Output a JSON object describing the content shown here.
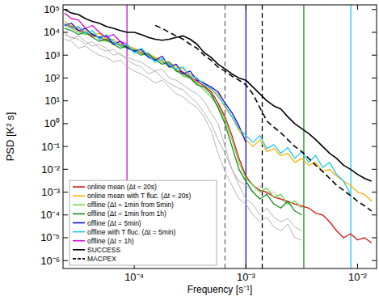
{
  "chart_data": {
    "type": "line",
    "x_label": "Frequency [s⁻¹]",
    "y_label": "PSD [K² s]",
    "log": true,
    "legend": "lower left",
    "xlim": [
      2.3e-05,
      0.0148
    ],
    "ylim": [
      4.5e-07,
      160000.0
    ],
    "xticks": [
      {
        "value": 0.0001,
        "label": "10⁻⁴"
      },
      {
        "value": 0.001,
        "label": "10⁻³"
      },
      {
        "value": 0.01,
        "label": "10⁻²"
      }
    ],
    "yticks": [
      {
        "value": 1e-06,
        "label": "10⁻⁶"
      },
      {
        "value": 1e-05,
        "label": "10⁻⁵"
      },
      {
        "value": 0.0001,
        "label": "10⁻⁴"
      },
      {
        "value": 0.001,
        "label": "10⁻³"
      },
      {
        "value": 0.01,
        "label": "10⁻²"
      },
      {
        "value": 0.1,
        "label": "10⁻¹"
      },
      {
        "value": 1,
        "label": "10⁰"
      },
      {
        "value": 10,
        "label": "10¹"
      },
      {
        "value": 100,
        "label": "10²"
      },
      {
        "value": 1000,
        "label": "10³"
      },
      {
        "value": 10000,
        "label": "10⁴"
      },
      {
        "value": 100000,
        "label": "10⁵"
      }
    ],
    "x": [
      2.371e-05,
      2.738e-05,
      3.162e-05,
      3.652e-05,
      4.217e-05,
      4.87e-05,
      5.623e-05,
      6.494e-05,
      7.499e-05,
      8.66e-05,
      0.0001,
      0.0001155,
      0.0001334,
      0.000154,
      0.0001778,
      0.0002054,
      0.0002371,
      0.0002738,
      0.0003162,
      0.0003652,
      0.0004217,
      0.000487,
      0.0005623,
      0.0006494,
      0.0007499,
      0.000866,
      0.001,
      0.001155,
      0.001334,
      0.00154,
      0.001778,
      0.002054,
      0.002371,
      0.002738,
      0.003162,
      0.003652,
      0.004217,
      0.00487,
      0.005623,
      0.006494,
      0.007499,
      0.00866,
      0.01,
      0.01155,
      0.01334
    ],
    "vlines": [
      {
        "x": 8.6e-05,
        "color": "#d010d0",
        "line_style": "solid"
      },
      {
        "x": 0.00065,
        "color": "#666666",
        "line_style": "dashed"
      },
      {
        "x": 0.001,
        "color": "#1010d0",
        "line_style": "solid"
      },
      {
        "x": 0.0014,
        "color": "#000000",
        "line_style": "dashed"
      },
      {
        "x": 0.0033,
        "color": "#1a8a1a",
        "line_style": "solid"
      },
      {
        "x": 0.0087,
        "color": "#20c8f0",
        "line_style": "solid"
      }
    ],
    "series": [
      {
        "color": "#b4b4b4",
        "values": [
          8000.0,
          6000.0,
          5000.0,
          3000.0,
          4000.0,
          2000.0,
          1500.0,
          1800.0,
          1000.0,
          800,
          600,
          500,
          300,
          200,
          250,
          100,
          80,
          50,
          30,
          20,
          10,
          3,
          1,
          0.1,
          0.01,
          0.002,
          0.0005,
          0.0003,
          0.0001,
          0.0002,
          8e-05,
          5e-05,
          7e-05,
          3e-05,
          2e-05,
          null,
          null,
          null,
          null,
          null,
          null,
          null,
          null,
          null,
          null
        ]
      },
      {
        "color": "#b4b4b4",
        "values": [
          10000.0,
          5000.0,
          7000.0,
          4000.0,
          2500.0,
          3000.0,
          2000.0,
          1000.0,
          1200.0,
          600,
          400,
          300,
          150,
          200,
          100,
          60,
          40,
          30,
          15,
          8,
          3,
          1,
          0.2,
          0.05,
          0.01,
          0.003,
          0.002,
          0.001,
          0.002,
          0.0008,
          0.001,
          0.0005,
          0.0003,
          0.0004,
          0.0002,
          null,
          null,
          null,
          null,
          null,
          null,
          null,
          null,
          null,
          null
        ]
      },
      {
        "color": "#b4b4b4",
        "values": [
          5000.0,
          4000.0,
          2000.0,
          2500.0,
          1500.0,
          1000.0,
          800,
          500,
          600,
          300,
          200,
          150,
          100,
          60,
          80,
          40,
          20,
          15,
          8,
          5,
          2,
          0.5,
          0.05,
          0.008,
          0.002,
          0.0005,
          0.0003,
          0.0001,
          5e-05,
          8e-05,
          3e-05,
          2e-05,
          4e-05,
          1e-05,
          8e-06,
          null,
          null,
          null,
          null,
          null,
          null,
          null,
          null,
          null,
          null
        ]
      },
      {
        "name": "online mean (Δt = 20s)",
        "color": "#dd1111",
        "values": [
          22000.0,
          18000.0,
          12000.0,
          10000.0,
          7000.0,
          6000.0,
          4500.0,
          3500.0,
          2800.0,
          2200.0,
          1600.0,
          1300.0,
          1000.0,
          700,
          500,
          400,
          220,
          180,
          110,
          70,
          45,
          25,
          8,
          2,
          0.3,
          0.03,
          0.005,
          0.002,
          0.0012,
          0.001,
          0.0006,
          0.0005,
          0.0004,
          0.0003,
          0.00025,
          0.0002,
          0.00012,
          0.0001,
          5e-05,
          2e-05,
          1e-05,
          1.5e-05,
          8e-06,
          1e-05,
          6e-06
        ]
      },
      {
        "name": "online mean with T fluc. (Δt = 20s)",
        "color": "#ffb000",
        "values": [
          30000.0,
          20000.0,
          15000.0,
          12000.0,
          8000.0,
          9000.0,
          5000.0,
          5000.0,
          3000.0,
          2500.0,
          2000.0,
          1500.0,
          1200.0,
          800,
          600,
          500,
          300,
          250,
          150,
          90,
          60,
          30,
          20,
          5,
          2,
          0.5,
          0.2,
          0.1,
          0.2,
          0.06,
          0.08,
          0.04,
          0.05,
          0.02,
          0.03,
          0.015,
          0.02,
          0.008,
          0.01,
          0.005,
          0.003,
          0.002,
          0.001,
          0.0008,
          0.0004
        ]
      },
      {
        "name": "offline (Δt = 1min from 5min)",
        "color": "#6ad54a",
        "values": [
          20000.0,
          15000.0,
          10000.0,
          8000.0,
          9000.0,
          5000.0,
          4000.0,
          3500.0,
          2500.0,
          2000.0,
          1800.0,
          1200.0,
          900,
          700,
          500,
          300,
          250,
          120,
          100,
          60,
          30,
          15,
          6,
          1.5,
          0.2,
          0.02,
          0.004,
          0.002,
          0.001,
          0.0015,
          0.0006,
          0.0008,
          0.0003,
          0.0004,
          0.0002,
          null,
          null,
          null,
          null,
          null,
          null,
          null,
          null,
          null,
          null
        ]
      },
      {
        "name": "offline (Δt = 1min from 1h)",
        "color": "#1a8a1a",
        "values": [
          15000.0,
          12000.0,
          8000.0,
          10000.0,
          6000.0,
          4000.0,
          5000.0,
          3000.0,
          2000.0,
          2500.0,
          1500.0,
          1000.0,
          1200.0,
          600,
          400,
          500,
          200,
          150,
          100,
          50,
          40,
          20,
          5,
          1,
          0.1,
          0.01,
          0.003,
          0.001,
          0.0005,
          0.0008,
          0.0003,
          0.0002,
          0.0004,
          0.00015,
          0.0001,
          null,
          null,
          null,
          null,
          null,
          null,
          null,
          null,
          null,
          null
        ]
      },
      {
        "name": "offline (Δt = 5min)",
        "color": "#1010d0",
        "values": [
          20000.0,
          25000.0,
          12000.0,
          15000.0,
          8000.0,
          6000.0,
          7000.0,
          3000.0,
          4000.0,
          2000.0,
          1500.0,
          1800.0,
          800,
          600,
          900,
          300,
          400,
          150,
          200,
          80,
          60,
          40,
          25,
          8,
          3,
          0.8,
          0.15,
          null,
          null,
          null,
          null,
          null,
          null,
          null,
          null,
          null,
          null,
          null,
          null,
          null,
          null,
          null,
          null,
          null,
          null
        ]
      },
      {
        "name": "offline with T fluc. (Δt = 5min)",
        "color": "#20c8f0",
        "values": [
          25000.0,
          15000.0,
          18000.0,
          9000.0,
          12000.0,
          5000.0,
          8000.0,
          4000.0,
          2500.0,
          3000.0,
          1200.0,
          2000.0,
          1000.0,
          500,
          700,
          400,
          250,
          300,
          120,
          100,
          50,
          35,
          15,
          6,
          2,
          0.6,
          0.3,
          0.15,
          0.3,
          0.08,
          0.12,
          0.05,
          0.09,
          0.03,
          0.06,
          0.02,
          0.04,
          0.012,
          0.02,
          0.006,
          0.003,
          0.0008,
          null,
          null,
          null
        ]
      },
      {
        "name": "offline (Δt = 1h)",
        "color": "#d010d0",
        "values": [
          70000.0,
          40000.0,
          35000.0,
          15000.0,
          20000.0,
          10000.0,
          6000.0,
          8000.0,
          4000.0,
          3000.0,
          null,
          null,
          null,
          null,
          null,
          null,
          null,
          null,
          null,
          null,
          null,
          null,
          null,
          null,
          null,
          null,
          null,
          null,
          null,
          null,
          null,
          null,
          null,
          null,
          null,
          null,
          null,
          null,
          null,
          null,
          null,
          null,
          null,
          null,
          null
        ]
      },
      {
        "name": "SUCCESS",
        "color": "#000000",
        "line_style": "solid",
        "values": [
          100000.0,
          70000.0,
          60000.0,
          40000.0,
          30000.0,
          25000.0,
          18000.0,
          15000.0,
          12000.0,
          10000.0,
          10000.0,
          8000.0,
          6000.0,
          5000.0,
          4500.0,
          5000.0,
          6000.0,
          7000.0,
          5000.0,
          3000.0,
          1300.0,
          800,
          400,
          250,
          150,
          100,
          80,
          40,
          20,
          10,
          6,
          4.4,
          2,
          1,
          0.6,
          0.37,
          0.2,
          0.1,
          0.05,
          0.03,
          0.015,
          0.01,
          0.006,
          0.004,
          0.003
        ]
      },
      {
        "name": "MACPEX",
        "color": "#000000",
        "line_style": "dashed",
        "values": [
          null,
          null,
          null,
          null,
          null,
          null,
          null,
          null,
          null,
          null,
          null,
          null,
          null,
          20000.0,
          15000.0,
          10000.0,
          7000.0,
          5000.0,
          3000.0,
          2000.0,
          1000.0,
          600,
          300,
          200,
          120,
          80,
          50,
          20,
          5,
          1.3,
          0.7,
          0.4,
          0.2,
          0.1,
          0.06,
          0.03,
          0.015,
          0.008,
          0.004,
          0.002,
          0.0012,
          0.0007,
          0.0004,
          0.00025,
          0.00015
        ]
      }
    ]
  }
}
